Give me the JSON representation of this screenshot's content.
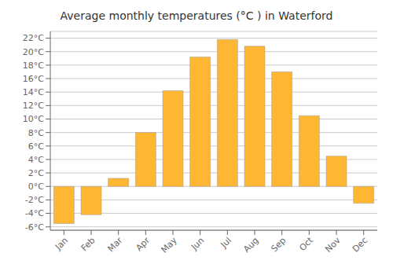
{
  "chart_data": {
    "type": "bar",
    "title": "Average monthly temperatures (°C ) in Waterford",
    "categories": [
      "Jan",
      "Feb",
      "Mar",
      "Apr",
      "May",
      "Jun",
      "Jul",
      "Aug",
      "Sep",
      "Oct",
      "Nov",
      "Dec"
    ],
    "values": [
      -5.5,
      -4.2,
      1.2,
      8.0,
      14.2,
      19.2,
      21.8,
      20.8,
      17.0,
      10.5,
      4.5,
      -2.5
    ],
    "color": "#FFB733",
    "ylim": [
      -6.5,
      23.0
    ],
    "yticks": [
      {
        "value": -6,
        "label": "-6°C"
      },
      {
        "value": -4,
        "label": "-4°C"
      },
      {
        "value": -2,
        "label": "-2°C"
      },
      {
        "value": 0,
        "label": "0°C"
      },
      {
        "value": 2,
        "label": "2°C"
      },
      {
        "value": 4,
        "label": "4°C"
      },
      {
        "value": 6,
        "label": "6°C"
      },
      {
        "value": 8,
        "label": "8°C"
      },
      {
        "value": 10,
        "label": "10°C"
      },
      {
        "value": 12,
        "label": "12°C"
      },
      {
        "value": 14,
        "label": "14°C"
      },
      {
        "value": 16,
        "label": "16°C"
      },
      {
        "value": 18,
        "label": "18°C"
      },
      {
        "value": 20,
        "label": "20°C"
      },
      {
        "value": 22,
        "label": "22°C"
      }
    ],
    "grid": true
  }
}
